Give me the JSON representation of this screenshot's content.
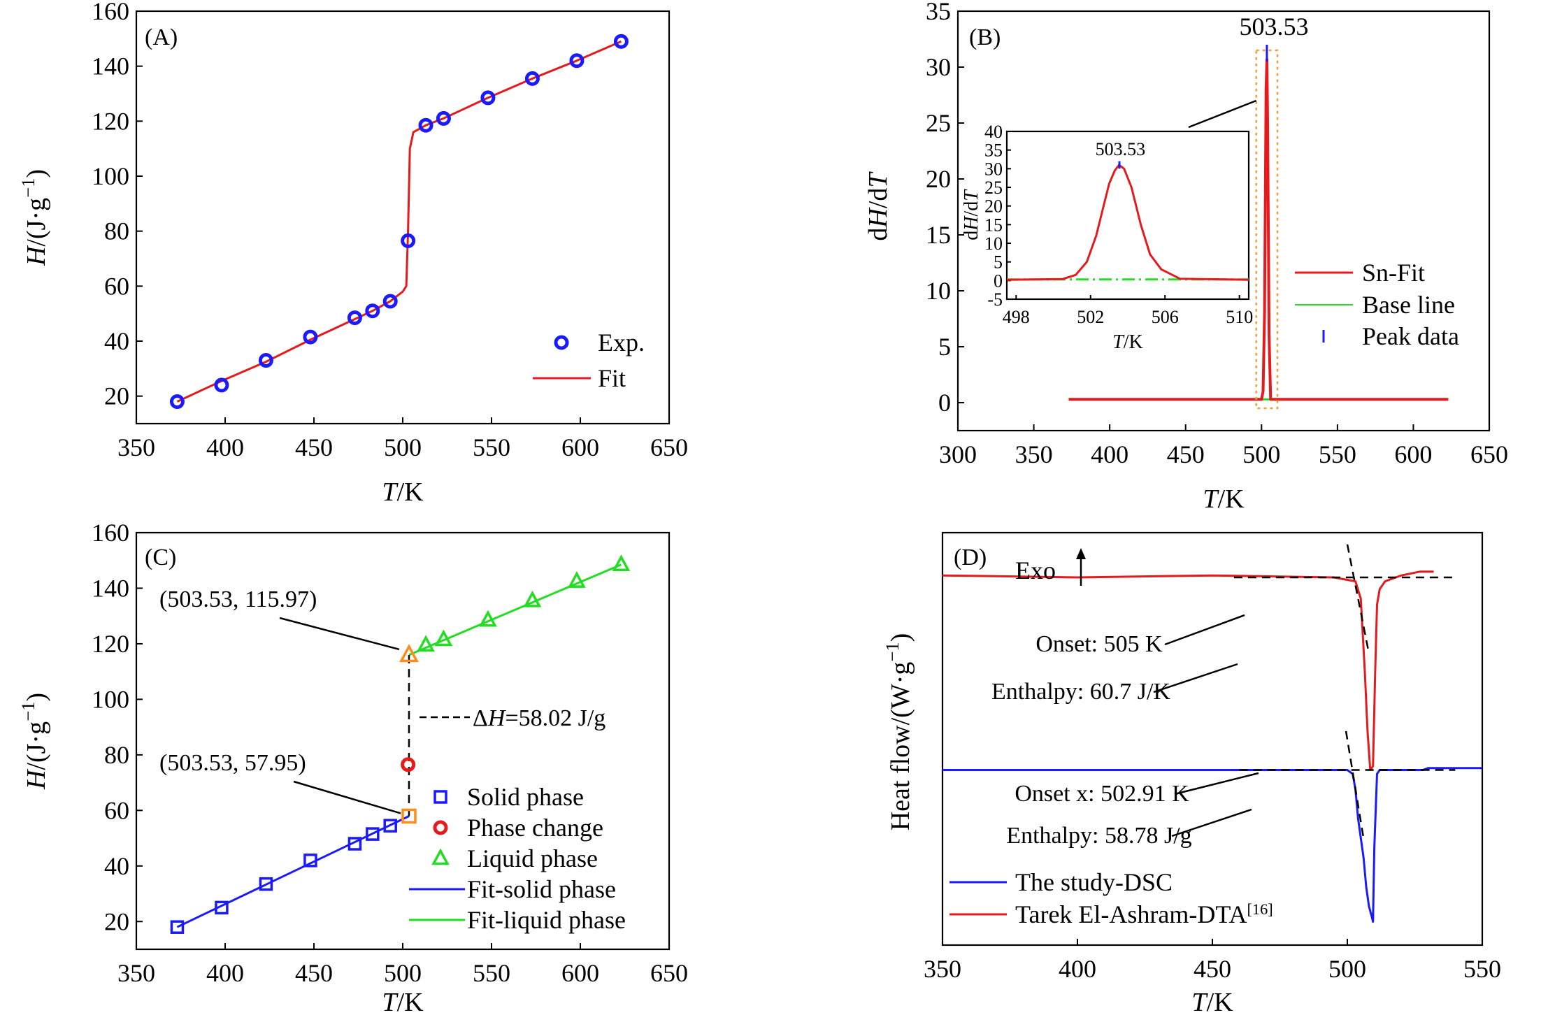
{
  "chart_data": [
    {
      "id": "A",
      "type": "scatter+line",
      "panel_label": "(A)",
      "xlabel_italic": "T",
      "xlabel_rest": "/K",
      "ylabel_italic": "H",
      "ylabel_rest": "/(J·g",
      "ylabel_sup": "−1",
      "ylabel_close": ")",
      "xlim": [
        350,
        650
      ],
      "ylim": [
        10,
        160
      ],
      "xticks": [
        350,
        400,
        450,
        500,
        550,
        600,
        650
      ],
      "yticks": [
        20,
        40,
        60,
        80,
        100,
        120,
        140,
        160
      ],
      "series": [
        {
          "name": "Exp.",
          "kind": "points",
          "color": "#1a1aff",
          "x": [
            373,
            398,
            423,
            448,
            473,
            483,
            493,
            503,
            513,
            523,
            548,
            573,
            598,
            623
          ],
          "y": [
            18,
            24,
            33,
            41.5,
            48.5,
            51,
            54.5,
            76.5,
            118.5,
            121,
            128.5,
            135.5,
            142,
            149
          ]
        },
        {
          "name": "Fit",
          "kind": "line",
          "color": "#e41a1c",
          "x": [
            373,
            398,
            423,
            448,
            473,
            483,
            493,
            500,
            502,
            503,
            504,
            506,
            513,
            523,
            548,
            573,
            598,
            623
          ],
          "y": [
            18,
            25.5,
            32.5,
            40.5,
            48,
            51,
            54.5,
            58,
            60,
            80,
            110,
            116,
            118.5,
            121,
            128.5,
            135.5,
            142,
            149
          ]
        }
      ],
      "legend": [
        "Exp.",
        "Fit"
      ]
    },
    {
      "id": "B",
      "type": "line",
      "panel_label": "(B)",
      "xlabel_italic": "T",
      "xlabel_rest": "/K",
      "ylabel": "dH/dT",
      "xlim": [
        300,
        650
      ],
      "ylim": [
        -2.5,
        35
      ],
      "xticks": [
        300,
        350,
        400,
        450,
        500,
        550,
        600,
        650
      ],
      "yticks": [
        0,
        5,
        10,
        15,
        20,
        25,
        30,
        35
      ],
      "peak_label": "503.53",
      "series": [
        {
          "name": "Sn-Fit",
          "color": "#e41a1c",
          "x": [
            373,
            500,
            501,
            502,
            503,
            503.53,
            504,
            505,
            506,
            623
          ],
          "y": [
            0.3,
            0.3,
            1,
            8,
            28,
            30.7,
            25,
            6,
            0.3,
            0.3
          ]
        },
        {
          "name": "Base line",
          "color": "#22dd22",
          "x": [
            373,
            623
          ],
          "y": [
            0.3,
            0.3
          ]
        },
        {
          "name": "Peak data",
          "color": "#1a1aff",
          "x": [
            503.53
          ],
          "y": [
            31.5
          ]
        }
      ],
      "legend": [
        "Sn-Fit",
        "Base line",
        "Peak data"
      ],
      "inset": {
        "xlim": [
          497.5,
          510.5
        ],
        "ylim": [
          -5,
          40
        ],
        "xticks": [
          498,
          502,
          506,
          510
        ],
        "yticks": [
          -5,
          0,
          5,
          10,
          15,
          20,
          25,
          30,
          35,
          40
        ],
        "ylabel": "dH/dT",
        "xlabel_italic": "T",
        "xlabel_rest": "/K",
        "peak_label": "503.53",
        "fit_x": [
          497.5,
          500.5,
          501.2,
          501.8,
          502.3,
          502.7,
          503.0,
          503.3,
          503.53,
          503.8,
          504.2,
          504.7,
          505.2,
          505.8,
          506.8,
          510.5
        ],
        "fit_y": [
          0.2,
          0.4,
          1.5,
          5,
          12,
          20,
          26,
          29.5,
          31,
          30,
          25,
          15,
          7,
          3,
          0.5,
          0.2
        ],
        "base_y": 0.3
      }
    },
    {
      "id": "C",
      "type": "scatter+line",
      "panel_label": "(C)",
      "xlabel_italic": "T",
      "xlabel_rest": "/K",
      "ylabel_italic": "H",
      "ylabel_rest": "/(J·g",
      "ylabel_sup": "−1",
      "ylabel_close": ")",
      "xlim": [
        350,
        650
      ],
      "ylim": [
        10,
        160
      ],
      "xticks": [
        350,
        400,
        450,
        500,
        550,
        600,
        650
      ],
      "yticks": [
        20,
        40,
        60,
        80,
        100,
        120,
        140,
        160
      ],
      "series": [
        {
          "name": "Solid phase",
          "kind": "square",
          "color": "#1a1aff",
          "x": [
            373,
            398,
            423,
            448,
            473,
            483,
            493
          ],
          "y": [
            18,
            25,
            33.5,
            42,
            48,
            51.5,
            54.5
          ]
        },
        {
          "name": "Phase change",
          "kind": "circle",
          "color": "#e41a1c",
          "x": [
            503
          ],
          "y": [
            76.5
          ]
        },
        {
          "name": "Liquid phase",
          "kind": "triangle",
          "color": "#22dd22",
          "x": [
            513,
            523,
            548,
            573,
            598,
            623
          ],
          "y": [
            119.5,
            121.5,
            128.5,
            135.5,
            142.5,
            148.5
          ]
        },
        {
          "name": "Fit-solid phase",
          "kind": "line",
          "color": "#1a1aff",
          "x": [
            373,
            503.53
          ],
          "y": [
            18,
            57.95
          ]
        },
        {
          "name": "Fit-liquid phase",
          "kind": "line",
          "color": "#22dd22",
          "x": [
            503.53,
            623
          ],
          "y": [
            115.97,
            148.5
          ]
        }
      ],
      "special_points": [
        {
          "kind": "triangle",
          "color": "#ff8c1a",
          "x": 503.53,
          "y": 115.97,
          "label": "(503.53, 115.97)"
        },
        {
          "kind": "square",
          "color": "#ff8c1a",
          "x": 503.53,
          "y": 57.95,
          "label": "(503.53, 57.95)"
        }
      ],
      "delta_h_prefix": "Δ",
      "delta_h_italic": "H",
      "delta_h_rest": "=58.02 J/g",
      "legend": [
        "Solid phase",
        "Phase change",
        "Liquid phase",
        "Fit-solid phase",
        "Fit-liquid phase"
      ]
    },
    {
      "id": "D",
      "type": "line",
      "panel_label": "(D)",
      "xlabel_italic": "T",
      "xlabel_rest": "/K",
      "ylabel_pre": "Heat flow/(W·g",
      "ylabel_sup": "−1",
      "ylabel_close": ")",
      "xlim": [
        350,
        550
      ],
      "ylim": [
        -1.7,
        0.42
      ],
      "xticks": [
        350,
        400,
        450,
        500,
        550
      ],
      "exo_label": "Exo",
      "series": [
        {
          "name": "Tarek El-Ashram-DTA",
          "ref": "[16]",
          "color": "#e41a1c",
          "x": [
            350,
            400,
            450,
            495,
            503,
            505,
            506.5,
            507.5,
            508.5,
            509.5,
            510.3,
            511,
            512,
            514,
            520,
            527,
            532
          ],
          "y": [
            0.2,
            0.19,
            0.2,
            0.19,
            0.17,
            0.08,
            -0.3,
            -0.6,
            -0.8,
            -0.78,
            -0.3,
            0.05,
            0.13,
            0.17,
            0.2,
            0.22,
            0.22
          ]
        },
        {
          "name": "The study-DSC",
          "color": "#1a1aff",
          "x": [
            350,
            400,
            450,
            500,
            502,
            503,
            504,
            505,
            506,
            507,
            508,
            509,
            509.5,
            510,
            511,
            512,
            520,
            528,
            530,
            550
          ],
          "y": [
            -0.8,
            -0.8,
            -0.8,
            -0.8,
            -0.82,
            -0.9,
            -1.05,
            -1.15,
            -1.25,
            -1.4,
            -1.5,
            -1.55,
            -1.58,
            -1.2,
            -0.82,
            -0.8,
            -0.8,
            -0.8,
            -0.79,
            -0.79
          ]
        }
      ],
      "annotations": [
        "Onset: 505 K",
        "Enthalpy: 60.7 J/K",
        "Onset x: 502.91 K",
        "Enthalpy: 58.78 J/g"
      ],
      "legend": [
        "The study-DSC",
        "Tarek El-Ashram-DTA"
      ]
    }
  ]
}
